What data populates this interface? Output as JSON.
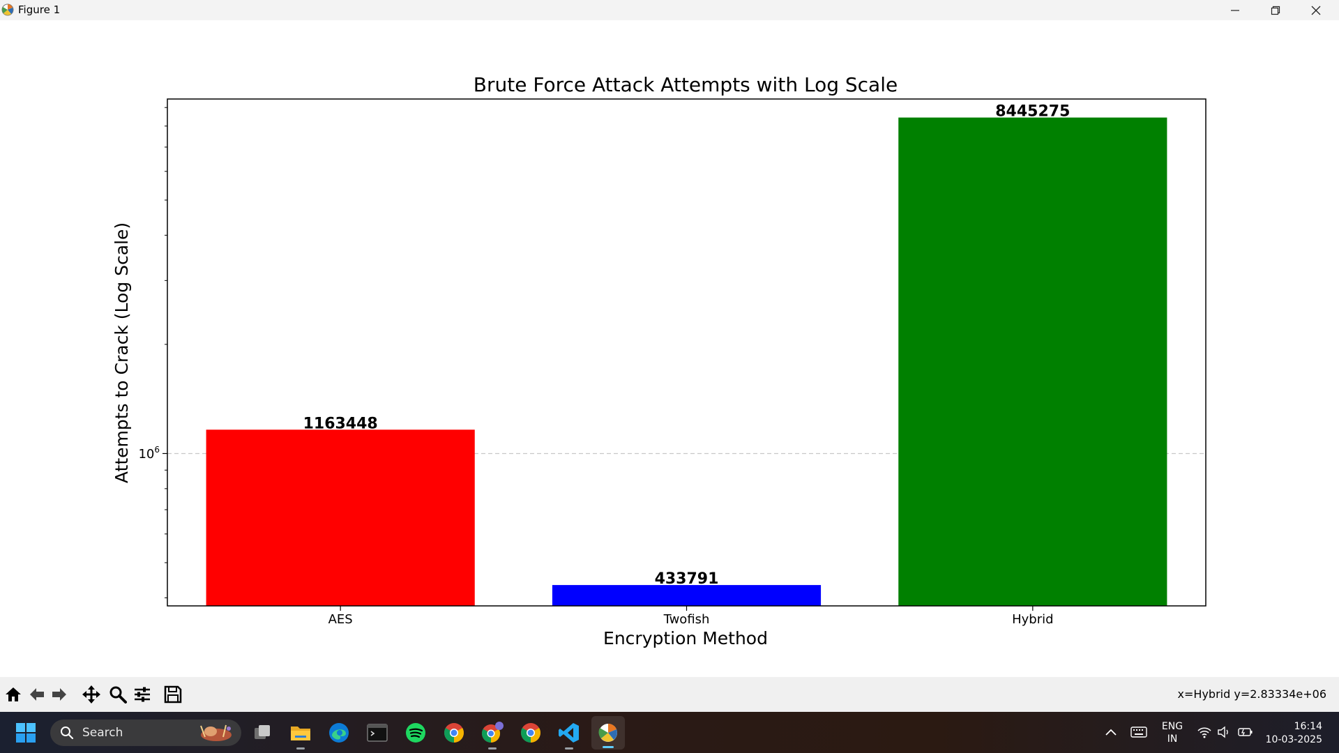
{
  "window": {
    "title": "Figure 1"
  },
  "chart_data": {
    "type": "bar",
    "title": "Brute Force Attack Attempts with Log Scale",
    "xlabel": "Encryption Method",
    "ylabel": "Attempts to Crack (Log Scale)",
    "yscale": "log",
    "ylim": [
      380000,
      9500000
    ],
    "categories": [
      "AES",
      "Twofish",
      "Hybrid"
    ],
    "values": [
      1163448,
      433791,
      8445275
    ],
    "value_labels": [
      "1163448",
      "433791",
      "8445275"
    ],
    "colors": [
      "#ff0000",
      "#0000ff",
      "#008000"
    ],
    "ytick_label": {
      "base": "10",
      "exponent": "6"
    },
    "grid": {
      "y": true,
      "style": "dashed"
    }
  },
  "toolbar": {
    "tools": [
      "home-icon",
      "back-icon",
      "forward-icon",
      "pan-icon",
      "zoom-icon",
      "configure-icon",
      "save-icon"
    ],
    "coordinate_readout": "x=Hybrid y=2.83334e+06"
  },
  "taskbar": {
    "search_label": "Search",
    "apps": [
      "task-view-icon",
      "file-explorer-icon",
      "edge-icon",
      "terminal-icon",
      "spotify-icon",
      "chrome-icon",
      "chrome-profile-icon",
      "chrome-icon",
      "vscode-icon",
      "matplotlib-icon"
    ],
    "language": {
      "line1": "ENG",
      "line2": "IN"
    },
    "clock": {
      "time": "16:14",
      "date": "10-03-2025"
    }
  }
}
